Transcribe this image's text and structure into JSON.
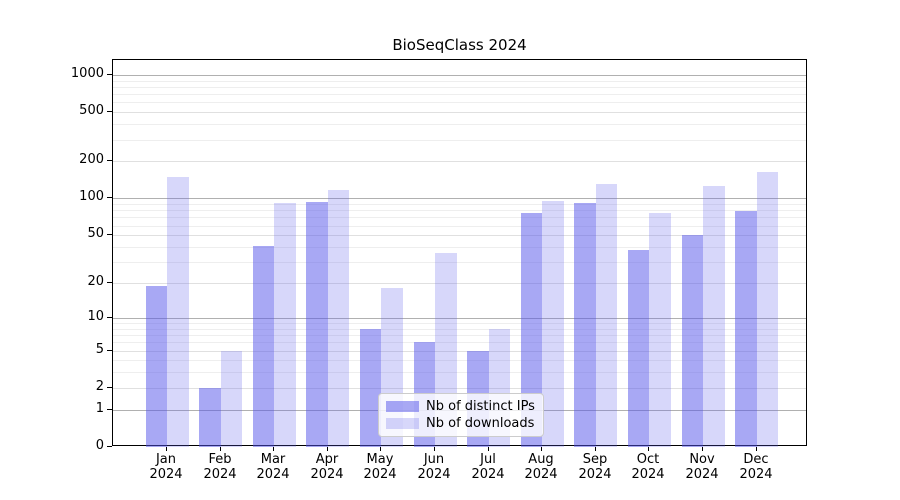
{
  "title": "BioSeqClass 2024",
  "legend": {
    "items": [
      {
        "label": "Nb of distinct IPs"
      },
      {
        "label": "Nb of downloads"
      }
    ]
  },
  "chart_data": {
    "type": "bar",
    "title": "BioSeqClass 2024",
    "year_label": "2024",
    "categories": [
      "Jan",
      "Feb",
      "Mar",
      "Apr",
      "May",
      "Jun",
      "Jul",
      "Aug",
      "Sep",
      "Oct",
      "Nov",
      "Dec"
    ],
    "series": [
      {
        "name": "Nb of distinct IPs",
        "color": "#5151e9",
        "alpha": 0.5,
        "values": [
          19,
          2,
          41,
          94,
          8,
          6,
          5,
          76,
          92,
          38,
          50,
          79
        ]
      },
      {
        "name": "Nb of downloads",
        "color": "#5f5feb",
        "alpha": 0.25,
        "values": [
          149,
          5,
          92,
          117,
          18,
          36,
          8,
          95,
          130,
          76,
          127,
          163
        ]
      }
    ],
    "y_ticks": [
      0,
      1,
      2,
      5,
      10,
      20,
      50,
      100,
      200,
      500,
      1000
    ],
    "y_scale": "log10(1+x)",
    "ylim": [
      0,
      1320
    ],
    "xlabel": "",
    "ylabel": "",
    "grid": "on",
    "legend_position": "lower center",
    "axis_color": "#000000",
    "grid_major_color": "#b0b0b0",
    "grid_labeled_color": "#e0e0e0",
    "grid_minor_color": "#eeeeee"
  }
}
